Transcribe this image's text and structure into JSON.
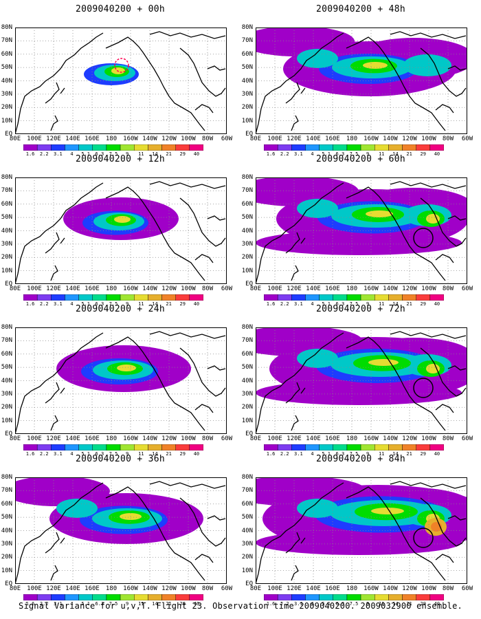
{
  "panels": [
    {
      "title": "2009040200 + 00h",
      "level": 0
    },
    {
      "title": "2009040200 + 48h",
      "level": 4
    },
    {
      "title": "2009040200 + 12h",
      "level": 1
    },
    {
      "title": "2009040200 + 60h",
      "level": 5
    },
    {
      "title": "2009040200 + 24h",
      "level": 2
    },
    {
      "title": "2009040200 + 72h",
      "level": 6
    },
    {
      "title": "2009040200 + 36h",
      "level": 3
    },
    {
      "title": "2009040200 + 84h",
      "level": 7
    }
  ],
  "lat_labels": [
    "80N",
    "70N",
    "60N",
    "50N",
    "40N",
    "30N",
    "20N",
    "10N",
    "EQ"
  ],
  "lon_labels": [
    "80E",
    "100E",
    "120E",
    "140E",
    "160E",
    "180",
    "160W",
    "140W",
    "120W",
    "100W",
    "80W",
    "60W"
  ],
  "colorbar": {
    "labels": [
      "1.6",
      "2.2",
      "3.1",
      "4",
      "5.1",
      "6.3",
      "7.5",
      "9",
      "11",
      "14",
      "21",
      "29",
      "40"
    ],
    "colors": [
      "#a000c8",
      "#7d3cf0",
      "#1e3cff",
      "#1f96ff",
      "#00c8c8",
      "#00dc8c",
      "#00dc00",
      "#a0e632",
      "#e6dc32",
      "#e6af2d",
      "#f08228",
      "#fa3c3c",
      "#f00082"
    ]
  },
  "caption": "Signal Variance for u,v,T. Flight 23. Observation time 2009040200. 2009032900 ensemble."
}
